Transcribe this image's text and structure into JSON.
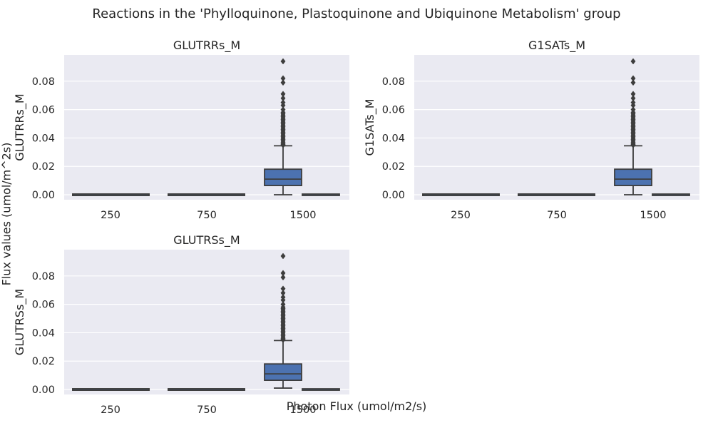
{
  "figure": {
    "title": "Reactions in the 'Phylloquinone, Plastoquinone and Ubiquinone Metabolism' group",
    "xlabel": "Photon Flux (umol/m2/s)",
    "ylabel": "Flux values (umol/m^2s)"
  },
  "colors": {
    "panel_background": "#eaeaf2",
    "grid": "#ffffff",
    "box_fill": "#4c72b0",
    "line": "#3d3d3d",
    "text": "#262626"
  },
  "chart_data": [
    {
      "type": "box",
      "title": "GLUTRRs_M",
      "ylabel": "GLUTRRs_M",
      "xlabel": "",
      "categories": [
        "250",
        "750",
        "1500"
      ],
      "ylim": [
        -0.0035,
        0.0985
      ],
      "yticks": [
        "0.00",
        "0.02",
        "0.04",
        "0.06",
        "0.08"
      ],
      "grid": true,
      "boxes": [
        {
          "category": "250",
          "whislo": 0.0,
          "q1": 0.0,
          "median": 0.0,
          "q3": 0.0,
          "whishi": 0.0,
          "fliers": []
        },
        {
          "category": "250",
          "whislo": 0.0,
          "q1": 0.0,
          "median": 0.0,
          "q3": 0.0,
          "whishi": 0.0,
          "fliers": []
        },
        {
          "category": "750",
          "whislo": 0.0,
          "q1": 0.0,
          "median": 0.0,
          "q3": 0.0,
          "whishi": 0.0,
          "fliers": []
        },
        {
          "category": "750",
          "whislo": 0.0,
          "q1": 0.0,
          "median": 0.0,
          "q3": 0.0,
          "whishi": 0.0,
          "fliers": []
        },
        {
          "category": "1500",
          "whislo": 0.0,
          "q1": 0.0065,
          "median": 0.011,
          "q3": 0.018,
          "whishi": 0.0345,
          "fliers": [
            0.035,
            0.0355,
            0.036,
            0.037,
            0.038,
            0.039,
            0.04,
            0.041,
            0.042,
            0.043,
            0.044,
            0.045,
            0.046,
            0.047,
            0.048,
            0.049,
            0.05,
            0.051,
            0.052,
            0.053,
            0.054,
            0.055,
            0.056,
            0.057,
            0.058,
            0.06,
            0.063,
            0.065,
            0.068,
            0.071,
            0.079,
            0.082,
            0.094
          ]
        },
        {
          "category": "1500",
          "whislo": 0.0,
          "q1": 0.0,
          "median": 0.0,
          "q3": 0.0,
          "whishi": 0.0,
          "fliers": []
        }
      ]
    },
    {
      "type": "box",
      "title": "G1SATs_M",
      "ylabel": "G1SATs_M",
      "xlabel": "",
      "categories": [
        "250",
        "750",
        "1500"
      ],
      "ylim": [
        -0.0035,
        0.0985
      ],
      "yticks": [
        "0.00",
        "0.02",
        "0.04",
        "0.06",
        "0.08"
      ],
      "grid": true,
      "boxes": [
        {
          "category": "250",
          "whislo": 0.0,
          "q1": 0.0,
          "median": 0.0,
          "q3": 0.0,
          "whishi": 0.0,
          "fliers": []
        },
        {
          "category": "250",
          "whislo": 0.0,
          "q1": 0.0,
          "median": 0.0,
          "q3": 0.0,
          "whishi": 0.0,
          "fliers": []
        },
        {
          "category": "750",
          "whislo": 0.0,
          "q1": 0.0,
          "median": 0.0,
          "q3": 0.0,
          "whishi": 0.0,
          "fliers": []
        },
        {
          "category": "750",
          "whislo": 0.0,
          "q1": 0.0,
          "median": 0.0,
          "q3": 0.0,
          "whishi": 0.0,
          "fliers": []
        },
        {
          "category": "1500",
          "whislo": 0.0,
          "q1": 0.0065,
          "median": 0.011,
          "q3": 0.018,
          "whishi": 0.0345,
          "fliers": [
            0.035,
            0.0355,
            0.036,
            0.037,
            0.038,
            0.039,
            0.04,
            0.041,
            0.042,
            0.043,
            0.044,
            0.045,
            0.046,
            0.047,
            0.048,
            0.049,
            0.05,
            0.051,
            0.052,
            0.053,
            0.054,
            0.055,
            0.056,
            0.057,
            0.058,
            0.06,
            0.063,
            0.065,
            0.068,
            0.071,
            0.079,
            0.082,
            0.094
          ]
        },
        {
          "category": "1500",
          "whislo": 0.0,
          "q1": 0.0,
          "median": 0.0,
          "q3": 0.0,
          "whishi": 0.0,
          "fliers": []
        }
      ]
    },
    {
      "type": "box",
      "title": "GLUTRSs_M",
      "ylabel": "GLUTRSs_M",
      "xlabel": "",
      "categories": [
        "250",
        "750",
        "1500"
      ],
      "ylim": [
        -0.0035,
        0.0985
      ],
      "yticks": [
        "0.00",
        "0.02",
        "0.04",
        "0.06",
        "0.08"
      ],
      "grid": true,
      "boxes": [
        {
          "category": "250",
          "whislo": 0.0,
          "q1": 0.0,
          "median": 0.0,
          "q3": 0.0,
          "whishi": 0.0,
          "fliers": []
        },
        {
          "category": "250",
          "whislo": 0.0,
          "q1": 0.0,
          "median": 0.0,
          "q3": 0.0,
          "whishi": 0.0,
          "fliers": []
        },
        {
          "category": "750",
          "whislo": 0.0,
          "q1": 0.0,
          "median": 0.0,
          "q3": 0.0,
          "whishi": 0.0,
          "fliers": []
        },
        {
          "category": "750",
          "whislo": 0.0,
          "q1": 0.0,
          "median": 0.0,
          "q3": 0.0,
          "whishi": 0.0,
          "fliers": []
        },
        {
          "category": "1500",
          "whislo": 0.001,
          "q1": 0.0065,
          "median": 0.011,
          "q3": 0.018,
          "whishi": 0.0345,
          "fliers": [
            0.035,
            0.0355,
            0.036,
            0.037,
            0.038,
            0.039,
            0.04,
            0.041,
            0.042,
            0.043,
            0.044,
            0.045,
            0.046,
            0.047,
            0.048,
            0.049,
            0.05,
            0.051,
            0.052,
            0.053,
            0.054,
            0.055,
            0.056,
            0.057,
            0.058,
            0.06,
            0.063,
            0.065,
            0.068,
            0.071,
            0.079,
            0.082,
            0.094
          ]
        },
        {
          "category": "1500",
          "whislo": 0.0,
          "q1": 0.0,
          "median": 0.0,
          "q3": 0.0,
          "whishi": 0.0,
          "fliers": []
        }
      ]
    }
  ]
}
